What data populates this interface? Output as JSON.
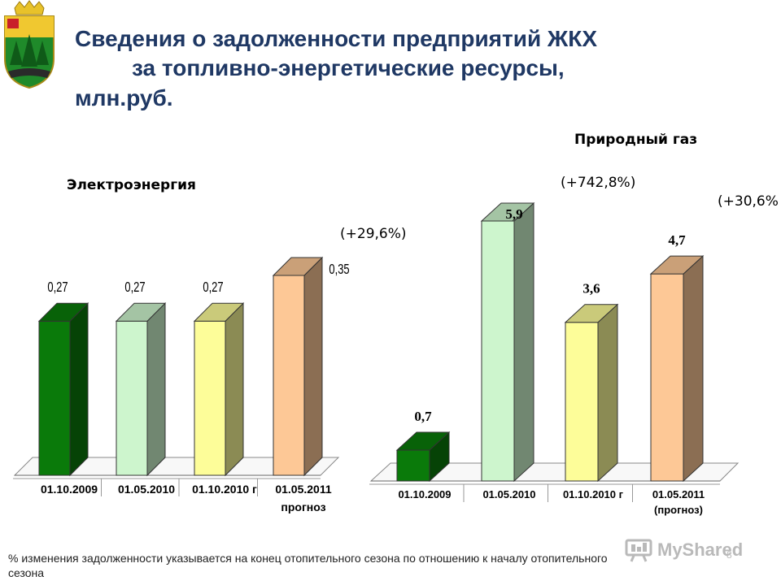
{
  "title": {
    "line1": "Сведения о задолженности предприятий ЖКХ",
    "line2": "за топливно-энергетические ресурсы,",
    "line3": "млн.руб."
  },
  "chart_data": [
    {
      "type": "bar",
      "title": "Электроэнергия",
      "categories": [
        "01.10.2009",
        "01.05.2010",
        "01.10.2010 г",
        "01.05.2011"
      ],
      "category_notes": [
        "",
        "",
        "",
        "прогноз"
      ],
      "values": [
        0.27,
        0.27,
        0.27,
        0.35
      ],
      "value_labels": [
        "0,27",
        "0,27",
        "0,27",
        "0,35"
      ],
      "change_labels": [
        "(+29,6%)"
      ],
      "ylim": [
        0,
        0.35
      ],
      "grid": false,
      "colors": [
        "#0a7a0a",
        "#cdf5cd",
        "#fdfd99",
        "#fdc896"
      ]
    },
    {
      "type": "bar",
      "title": "Природный газ",
      "categories": [
        "01.10.2009",
        "01.05.2010",
        "01.10.2010 г",
        "01.05.2011"
      ],
      "category_notes": [
        "",
        "",
        "",
        "(прогноз)"
      ],
      "values": [
        0.7,
        5.9,
        3.6,
        4.7
      ],
      "value_labels": [
        "0,7",
        "5,9",
        "3,6",
        "4,7"
      ],
      "change_labels": [
        "(+742,8%)",
        "(+30,6%"
      ],
      "ylim": [
        0,
        5.9
      ],
      "grid": false,
      "colors": [
        "#0a7a0a",
        "#cdf5cd",
        "#fdfd99",
        "#fdc896"
      ]
    }
  ],
  "footnote": "% изменения задолженности указывается на конец отопительного сезона по отношению к началу отопительного сезона",
  "watermark": "MyShared",
  "page_number": "8"
}
